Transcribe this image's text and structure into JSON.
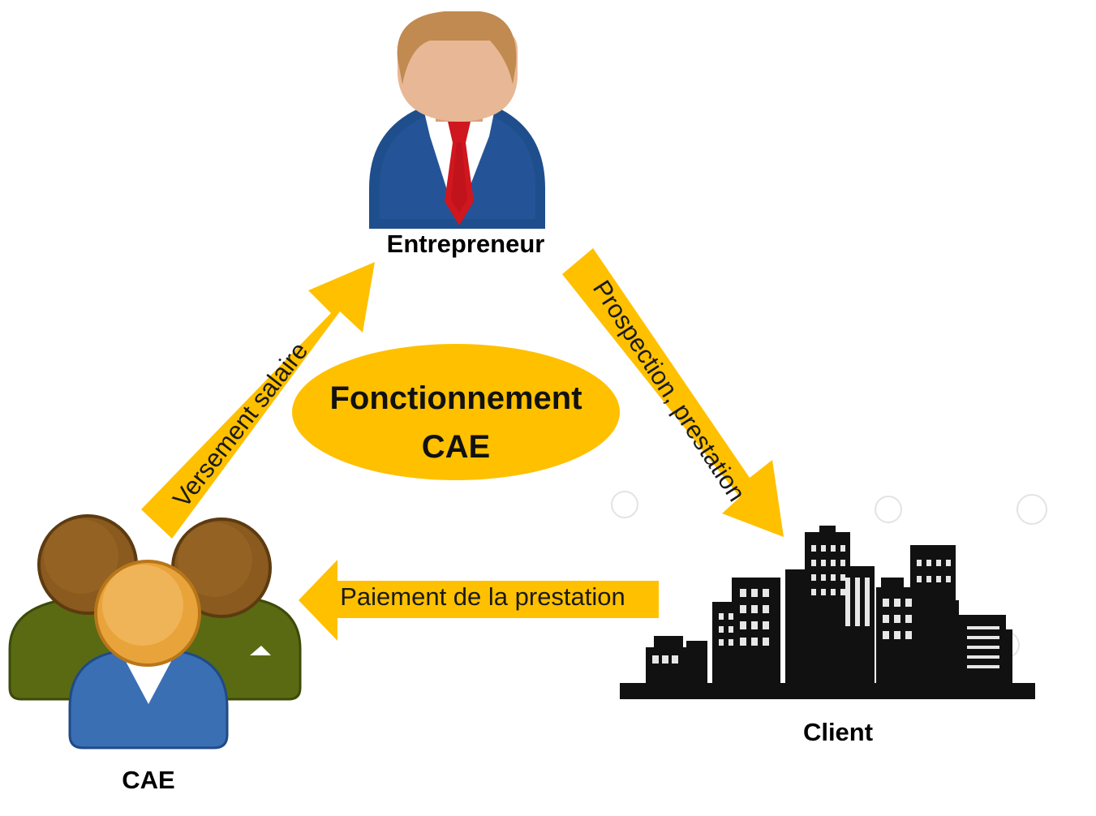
{
  "nodes": {
    "entrepreneur": {
      "label": "Entrepreneur",
      "icon": "businessman-icon"
    },
    "client": {
      "label": "Client",
      "icon": "city-buildings-icon"
    },
    "cae": {
      "label": "CAE",
      "icon": "people-group-icon"
    }
  },
  "center": {
    "line1": "Fonctionnement",
    "line2": "CAE"
  },
  "arrows": {
    "cae_to_entrepreneur": {
      "label": "Versement salaire"
    },
    "entrepreneur_to_client": {
      "label": "Prospection, prestation"
    },
    "client_to_cae": {
      "label": "Paiement de la prestation"
    }
  },
  "colors": {
    "accent": "#FFC000",
    "suit": "#1F4E8C",
    "tie": "#D0161E",
    "skin": "#E8B795",
    "hair": "#C08A50",
    "group_green": "#5A6A12",
    "group_brown": "#8A5A1E",
    "group_blue": "#3A6FB4",
    "group_orange": "#E8A33A",
    "building": "#111111"
  }
}
